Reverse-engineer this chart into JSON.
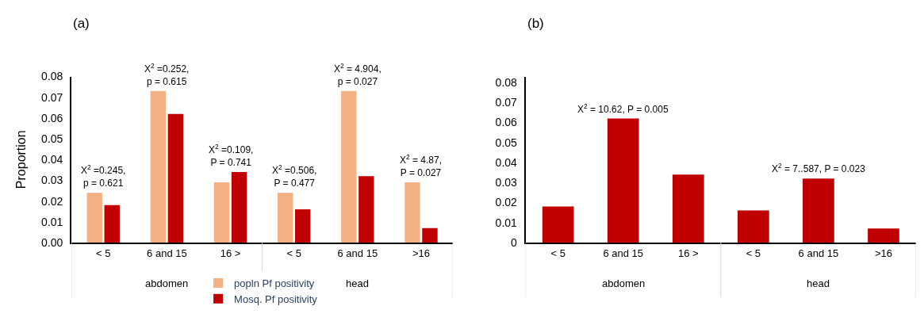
{
  "chart_data": [
    {
      "type": "bar",
      "title": "(a)",
      "ylabel": "Proportion",
      "categories": [
        "< 5",
        "6 and 15",
        "16 >",
        "< 5",
        "6 and 15",
        ">16"
      ],
      "series": [
        {
          "name": "popln Pf positivity",
          "color": "#f4b183",
          "values": [
            0.024,
            0.073,
            0.029,
            0.024,
            0.073,
            0.029
          ]
        },
        {
          "name": "Mosq. Pf positivity",
          "color": "#c00000",
          "values": [
            0.018,
            0.062,
            0.034,
            0.016,
            0.032,
            0.007
          ]
        }
      ],
      "ylim": [
        0,
        0.08
      ],
      "yticks": [
        {
          "value": 0,
          "label": "0.00"
        },
        0.01,
        0.02,
        0.03,
        0.04,
        0.05,
        0.06,
        0.07,
        0.08
      ],
      "grid": false,
      "legend": "bottom",
      "annotations": [
        "X$^{2}$ =0.245,\np = 0.621",
        "X$^{2}$ =0.252,\np = 0.615",
        "X$^{2}$ =0.109,\nP = 0.741",
        "X$^{2}$ =0.506,\nP = 0.477",
        "X$^{2}$ = 4.904,\np = 0.027",
        "X$^{2}$ = 4.87,\nP = 0.027",
        "abdomen",
        "head"
      ]
    },
    {
      "type": "bar",
      "title": "(b)",
      "categories": [
        "< 5",
        "6 and 15",
        "16 >",
        "< 5",
        "6 and 15",
        ">16"
      ],
      "series": [
        {
          "color": "#c00000",
          "values": [
            0.018,
            0.062,
            0.034,
            0.016,
            0.032,
            0.007
          ]
        }
      ],
      "ylim": [
        0,
        0.083
      ],
      "yticks": [
        0,
        0.01,
        0.02,
        0.03,
        0.04,
        0.05,
        0.06,
        0.07,
        0.08
      ],
      "grid": false,
      "legend": false,
      "annotations": [
        "X$^{2}$ = 10.62, P = 0.005",
        "X$^{2}$ = 7..587, P = 0.023",
        "abdomen",
        "head"
      ]
    }
  ]
}
